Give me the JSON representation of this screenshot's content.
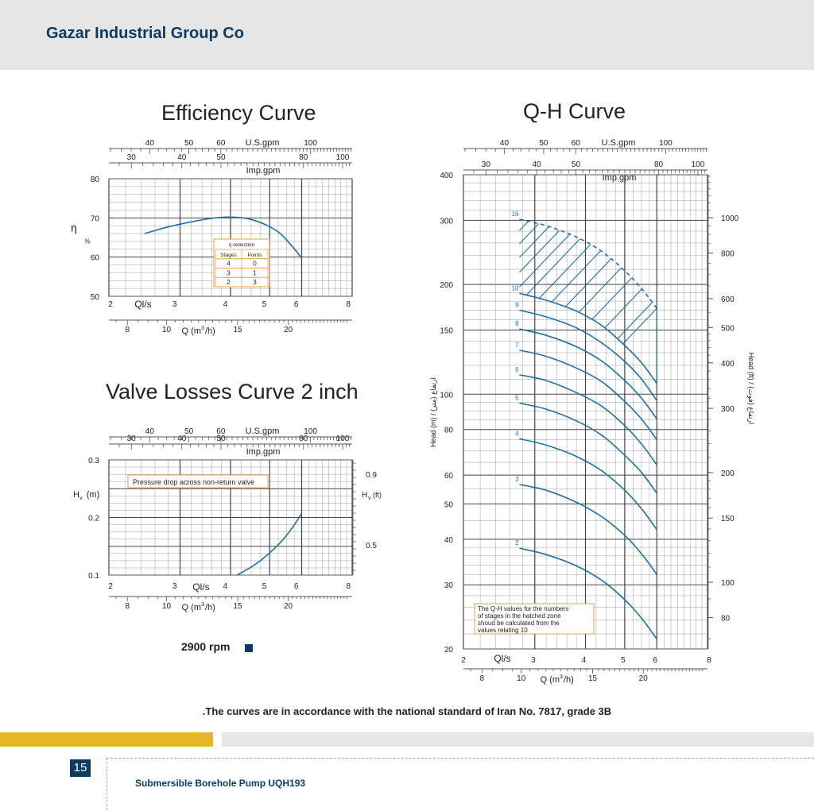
{
  "header": {
    "company": "Gazar Industrial Group Co"
  },
  "colors": {
    "curve": "#1f6fa8",
    "box_border": "#e8a050",
    "header_bg": "#e6e6e6",
    "brand_blue": "#0d3c63",
    "accent_yellow": "#e7b624"
  },
  "efficiency": {
    "title": "Efficiency Curve"
  },
  "qh": {
    "title": "Q-H Curve"
  },
  "valve": {
    "title": "Valve Losses Curve 2 inch"
  },
  "rpm_label": "2900 rpm",
  "footnote": ".The curves are in accordance with the national standard of Iran No. 7817, grade 3B",
  "footer": {
    "page_number": "15",
    "product": "Submersible Borehole Pump UQH193"
  },
  "chart_data": [
    {
      "type": "line",
      "title": "Efficiency Curve",
      "xlabel": "Ql/s",
      "x2label": "Q (m³/h)",
      "x3label": "Imp.gpm",
      "x4label": "U.S.gpm",
      "ylabel": "η",
      "yunit": "%",
      "x_scale": "log",
      "xlim": [
        2,
        8
      ],
      "ylim": [
        50,
        80
      ],
      "x_ticks": [
        "2",
        "3",
        "4",
        "5",
        "6",
        "8"
      ],
      "x2_ticks": [
        "8",
        "10",
        "15",
        "20"
      ],
      "imp_ticks": [
        "30",
        "40",
        "50",
        "80",
        "100"
      ],
      "us_ticks": [
        "40",
        "50",
        "60",
        "U.S.gpm",
        "100"
      ],
      "y_ticks": [
        "50",
        "60",
        "70",
        "80"
      ],
      "series": [
        {
          "x": [
            2.45,
            2.8,
            3.2,
            3.6,
            3.9,
            4.2,
            4.5,
            4.9,
            5.3,
            5.7,
            6.0
          ],
          "y": [
            66,
            67.7,
            69,
            69.9,
            70.2,
            70.1,
            69.6,
            68.2,
            66.1,
            62.6,
            59.8
          ]
        }
      ],
      "table": {
        "title": "η-reduction",
        "headers": [
          "Stages",
          "Points"
        ],
        "rows": [
          [
            "4",
            "0"
          ],
          [
            "3",
            "1"
          ],
          [
            "2",
            "3"
          ]
        ]
      }
    },
    {
      "type": "line",
      "title": "Q-H Curve",
      "xlabel": "Ql/s",
      "x2label": "Q (m³/h)",
      "x3label": "Imp.gpm",
      "x4label": "U.S.gpm",
      "ylabel": "Head (m)  /  ارتفاع (متر)",
      "y2label": "Head (ft)  /  ارتفاع (فوت)",
      "x_scale": "log",
      "y_scale": "log",
      "xlim": [
        2,
        8
      ],
      "ylim": [
        20,
        400
      ],
      "x_ticks": [
        "2",
        "3",
        "4",
        "5",
        "6",
        "8"
      ],
      "x2_ticks": [
        "8",
        "10",
        "15",
        "20"
      ],
      "imp_ticks": [
        "30",
        "40",
        "50",
        "80",
        "100"
      ],
      "us_ticks": [
        "40",
        "50",
        "60",
        "U.S.gpm",
        "100"
      ],
      "y_ticks": [
        "20",
        "30",
        "40",
        "50",
        "60",
        "80",
        "100",
        "150",
        "200",
        "300",
        "400"
      ],
      "y2_ticks": [
        "80",
        "100",
        "150",
        "200",
        "300",
        "400",
        "500",
        "600",
        "800",
        "1000"
      ],
      "series": [
        {
          "name": "16",
          "dashed": true,
          "x": [
            2.75,
            3.2,
            3.8,
            4.4,
            5.0,
            5.5,
            6.0
          ],
          "y": [
            302,
            290,
            270,
            246,
            218,
            195,
            172
          ]
        },
        {
          "name": "10",
          "x": [
            2.75,
            3.2,
            3.8,
            4.4,
            5.0,
            5.5,
            6.0
          ],
          "y": [
            189,
            181,
            169,
            154,
            136,
            122,
            107
          ]
        },
        {
          "name": "9",
          "x": [
            2.75,
            3.2,
            3.8,
            4.4,
            5.0,
            5.5,
            6.0
          ],
          "y": [
            170,
            163,
            152,
            138,
            123,
            110,
            96
          ]
        },
        {
          "name": "8",
          "x": [
            2.75,
            3.2,
            3.8,
            4.4,
            5.0,
            5.5,
            6.0
          ],
          "y": [
            151,
            145,
            135,
            123,
            109,
            97.5,
            85.5
          ]
        },
        {
          "name": "7",
          "x": [
            2.75,
            3.2,
            3.8,
            4.4,
            5.0,
            5.5,
            6.0
          ],
          "y": [
            132,
            127,
            118,
            108,
            95.5,
            85.5,
            75
          ]
        },
        {
          "name": "6",
          "x": [
            2.75,
            3.2,
            3.8,
            4.4,
            5.0,
            5.5,
            6.0
          ],
          "y": [
            113,
            109,
            101,
            92.5,
            82,
            73,
            64
          ]
        },
        {
          "name": "5",
          "x": [
            2.75,
            3.2,
            3.8,
            4.4,
            5.0,
            5.5,
            6.0
          ],
          "y": [
            94.5,
            91,
            84.5,
            77,
            68,
            61,
            53.5
          ]
        },
        {
          "name": "4",
          "x": [
            2.75,
            3.2,
            3.8,
            4.4,
            5.0,
            5.5,
            6.0
          ],
          "y": [
            75.5,
            72.5,
            67.5,
            61.5,
            54.5,
            48.5,
            42.5
          ]
        },
        {
          "name": "3",
          "x": [
            2.75,
            3.2,
            3.8,
            4.4,
            5.0,
            5.5,
            6.0
          ],
          "y": [
            56.5,
            54.5,
            50.5,
            46,
            41,
            36.5,
            32
          ]
        },
        {
          "name": "2",
          "x": [
            2.75,
            3.2,
            3.8,
            4.4,
            5.0,
            5.5,
            6.0
          ],
          "y": [
            37.8,
            36.3,
            33.8,
            30.8,
            27.3,
            24.3,
            21.3
          ]
        }
      ],
      "note": "The Q-H values for the numbers of stages in the hatched zone shoud be calculated from the values relating 10"
    },
    {
      "type": "line",
      "title": "Valve Losses Curve 2 inch",
      "xlabel": "Ql/s",
      "x2label": "Q (m³/h)",
      "x3label": "Imp.gpm",
      "x4label": "U.S.gpm",
      "ylabel": "Hv(m)",
      "y2label": "Hv (ft)",
      "x_scale": "log",
      "xlim": [
        2,
        8
      ],
      "ylim": [
        0.1,
        0.3
      ],
      "x_ticks": [
        "2",
        "3",
        "4",
        "5",
        "6",
        "8"
      ],
      "x2_ticks": [
        "8",
        "10",
        "15",
        "20"
      ],
      "imp_ticks": [
        "30",
        "40",
        "50",
        "80",
        "100"
      ],
      "us_ticks": [
        "40",
        "50",
        "60",
        "U.S.gpm",
        "100"
      ],
      "y_ticks": [
        "0.1",
        "0.2",
        "0.3"
      ],
      "y2_ticks": [
        "0.5",
        "0.9"
      ],
      "series": [
        {
          "x": [
            4.15,
            4.5,
            4.8,
            5.1,
            5.4,
            5.7,
            6.0
          ],
          "y": [
            0.1,
            0.114,
            0.128,
            0.144,
            0.162,
            0.183,
            0.207
          ]
        }
      ],
      "annotation": "Pressure drop across non-return valve"
    }
  ]
}
